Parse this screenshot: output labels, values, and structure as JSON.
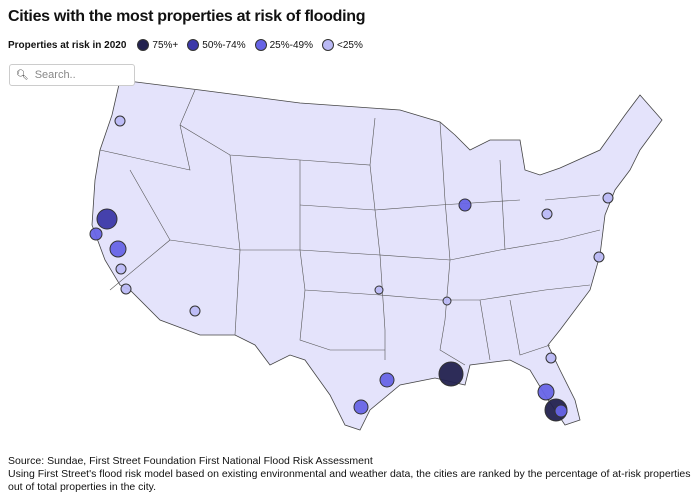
{
  "header": {
    "title": "Cities with the most properties at risk of flooding"
  },
  "legend": {
    "title": "Properties at risk in 2020",
    "items": [
      {
        "label": "75%+",
        "color": "#23224f"
      },
      {
        "label": "50%-74%",
        "color": "#3c38a8"
      },
      {
        "label": "25%-49%",
        "color": "#6764e6"
      },
      {
        "label": "<25%",
        "color": "#bab9f5"
      }
    ]
  },
  "search": {
    "placeholder": "Search.."
  },
  "footer": {
    "source": "Source: Sundae, First Street Foundation First National Flood Risk Assessment",
    "note": "Using First Street's flood risk model based on existing environmental and weather data, the cities are ranked by the percentage of at-risk properties out of total properties in the city."
  }
}
